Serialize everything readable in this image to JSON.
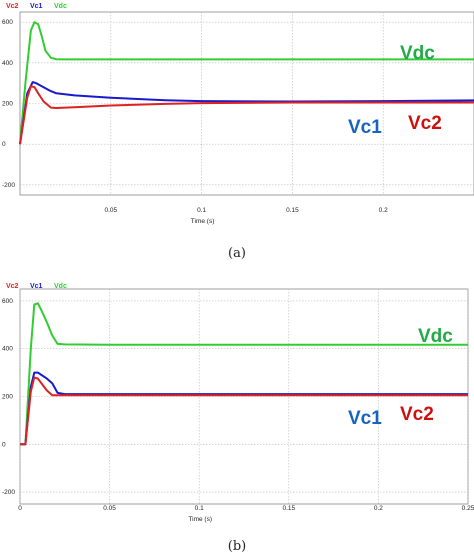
{
  "chart_data": [
    {
      "type": "line",
      "caption": "(a)",
      "legend": [
        "Vc2",
        "Vc1",
        "Vdc"
      ],
      "xlabel": "Time (s)",
      "xlim": [
        0,
        0.25
      ],
      "ylim": [
        -250,
        650
      ],
      "xticks": [
        0.05,
        0.1,
        0.15,
        0.2
      ],
      "xtick_labels": [
        "0.05",
        "0.1",
        "0.15",
        "0.2"
      ],
      "yticks": [
        -200,
        0,
        200,
        400,
        600
      ],
      "ytick_labels": [
        "-200",
        "0",
        "200",
        "400",
        "600"
      ],
      "grid": true,
      "annotations": [
        "Vdc",
        "Vc1",
        "Vc2"
      ],
      "series": [
        {
          "name": "Vdc",
          "color": "#33cc33",
          "x": [
            0,
            0.003,
            0.006,
            0.008,
            0.01,
            0.012,
            0.014,
            0.017,
            0.02,
            0.025,
            0.05,
            0.1,
            0.15,
            0.2,
            0.25
          ],
          "y": [
            0,
            300,
            560,
            600,
            590,
            530,
            460,
            425,
            418,
            417,
            417,
            417,
            417,
            417,
            417
          ]
        },
        {
          "name": "Vc1",
          "color": "#1a1acc",
          "x": [
            0,
            0.004,
            0.007,
            0.009,
            0.012,
            0.016,
            0.02,
            0.03,
            0.05,
            0.08,
            0.1,
            0.15,
            0.2,
            0.25
          ],
          "y": [
            0,
            250,
            305,
            300,
            285,
            265,
            250,
            240,
            228,
            216,
            212,
            210,
            212,
            215
          ]
        },
        {
          "name": "Vc2",
          "color": "#dd2222",
          "x": [
            0,
            0.004,
            0.006,
            0.008,
            0.01,
            0.013,
            0.017,
            0.02,
            0.03,
            0.05,
            0.08,
            0.1,
            0.15,
            0.2,
            0.25
          ],
          "y": [
            0,
            230,
            285,
            280,
            250,
            210,
            180,
            178,
            182,
            190,
            198,
            202,
            205,
            205,
            205
          ]
        }
      ]
    },
    {
      "type": "line",
      "caption": "(b)",
      "legend": [
        "Vc2",
        "Vc1",
        "Vdc"
      ],
      "xlabel": "Time (s)",
      "xlim": [
        0,
        0.25
      ],
      "ylim": [
        -250,
        650
      ],
      "xticks": [
        0,
        0.05,
        0.1,
        0.15,
        0.2,
        0.25
      ],
      "xtick_labels": [
        "0",
        "0.05",
        "0.1",
        "0.15",
        "0.2",
        "0.25"
      ],
      "yticks": [
        -200,
        0,
        200,
        400,
        600
      ],
      "ytick_labels": [
        "-200",
        "0",
        "200",
        "400",
        "600"
      ],
      "grid": true,
      "annotations": [
        "Vdc",
        "Vc1",
        "Vc2"
      ],
      "series": [
        {
          "name": "Vdc",
          "color": "#33cc33",
          "x": [
            0,
            0.003,
            0.006,
            0.008,
            0.01,
            0.012,
            0.015,
            0.018,
            0.021,
            0.025,
            0.05,
            0.1,
            0.15,
            0.2,
            0.25
          ],
          "y": [
            0,
            0,
            400,
            585,
            590,
            560,
            510,
            455,
            420,
            418,
            417,
            417,
            417,
            417,
            417
          ]
        },
        {
          "name": "Vc1",
          "color": "#1a1acc",
          "x": [
            0,
            0.003,
            0.006,
            0.008,
            0.01,
            0.012,
            0.015,
            0.018,
            0.021,
            0.025,
            0.05,
            0.1,
            0.15,
            0.2,
            0.25
          ],
          "y": [
            0,
            0,
            240,
            300,
            300,
            290,
            275,
            255,
            215,
            210,
            210,
            210,
            210,
            210,
            210
          ]
        },
        {
          "name": "Vc2",
          "color": "#dd2222",
          "x": [
            0,
            0.003,
            0.006,
            0.008,
            0.01,
            0.012,
            0.015,
            0.018,
            0.021,
            0.025,
            0.05,
            0.1,
            0.15,
            0.2,
            0.25
          ],
          "y": [
            0,
            0,
            220,
            280,
            275,
            255,
            225,
            205,
            205,
            205,
            205,
            205,
            205,
            205,
            205
          ]
        }
      ]
    }
  ]
}
